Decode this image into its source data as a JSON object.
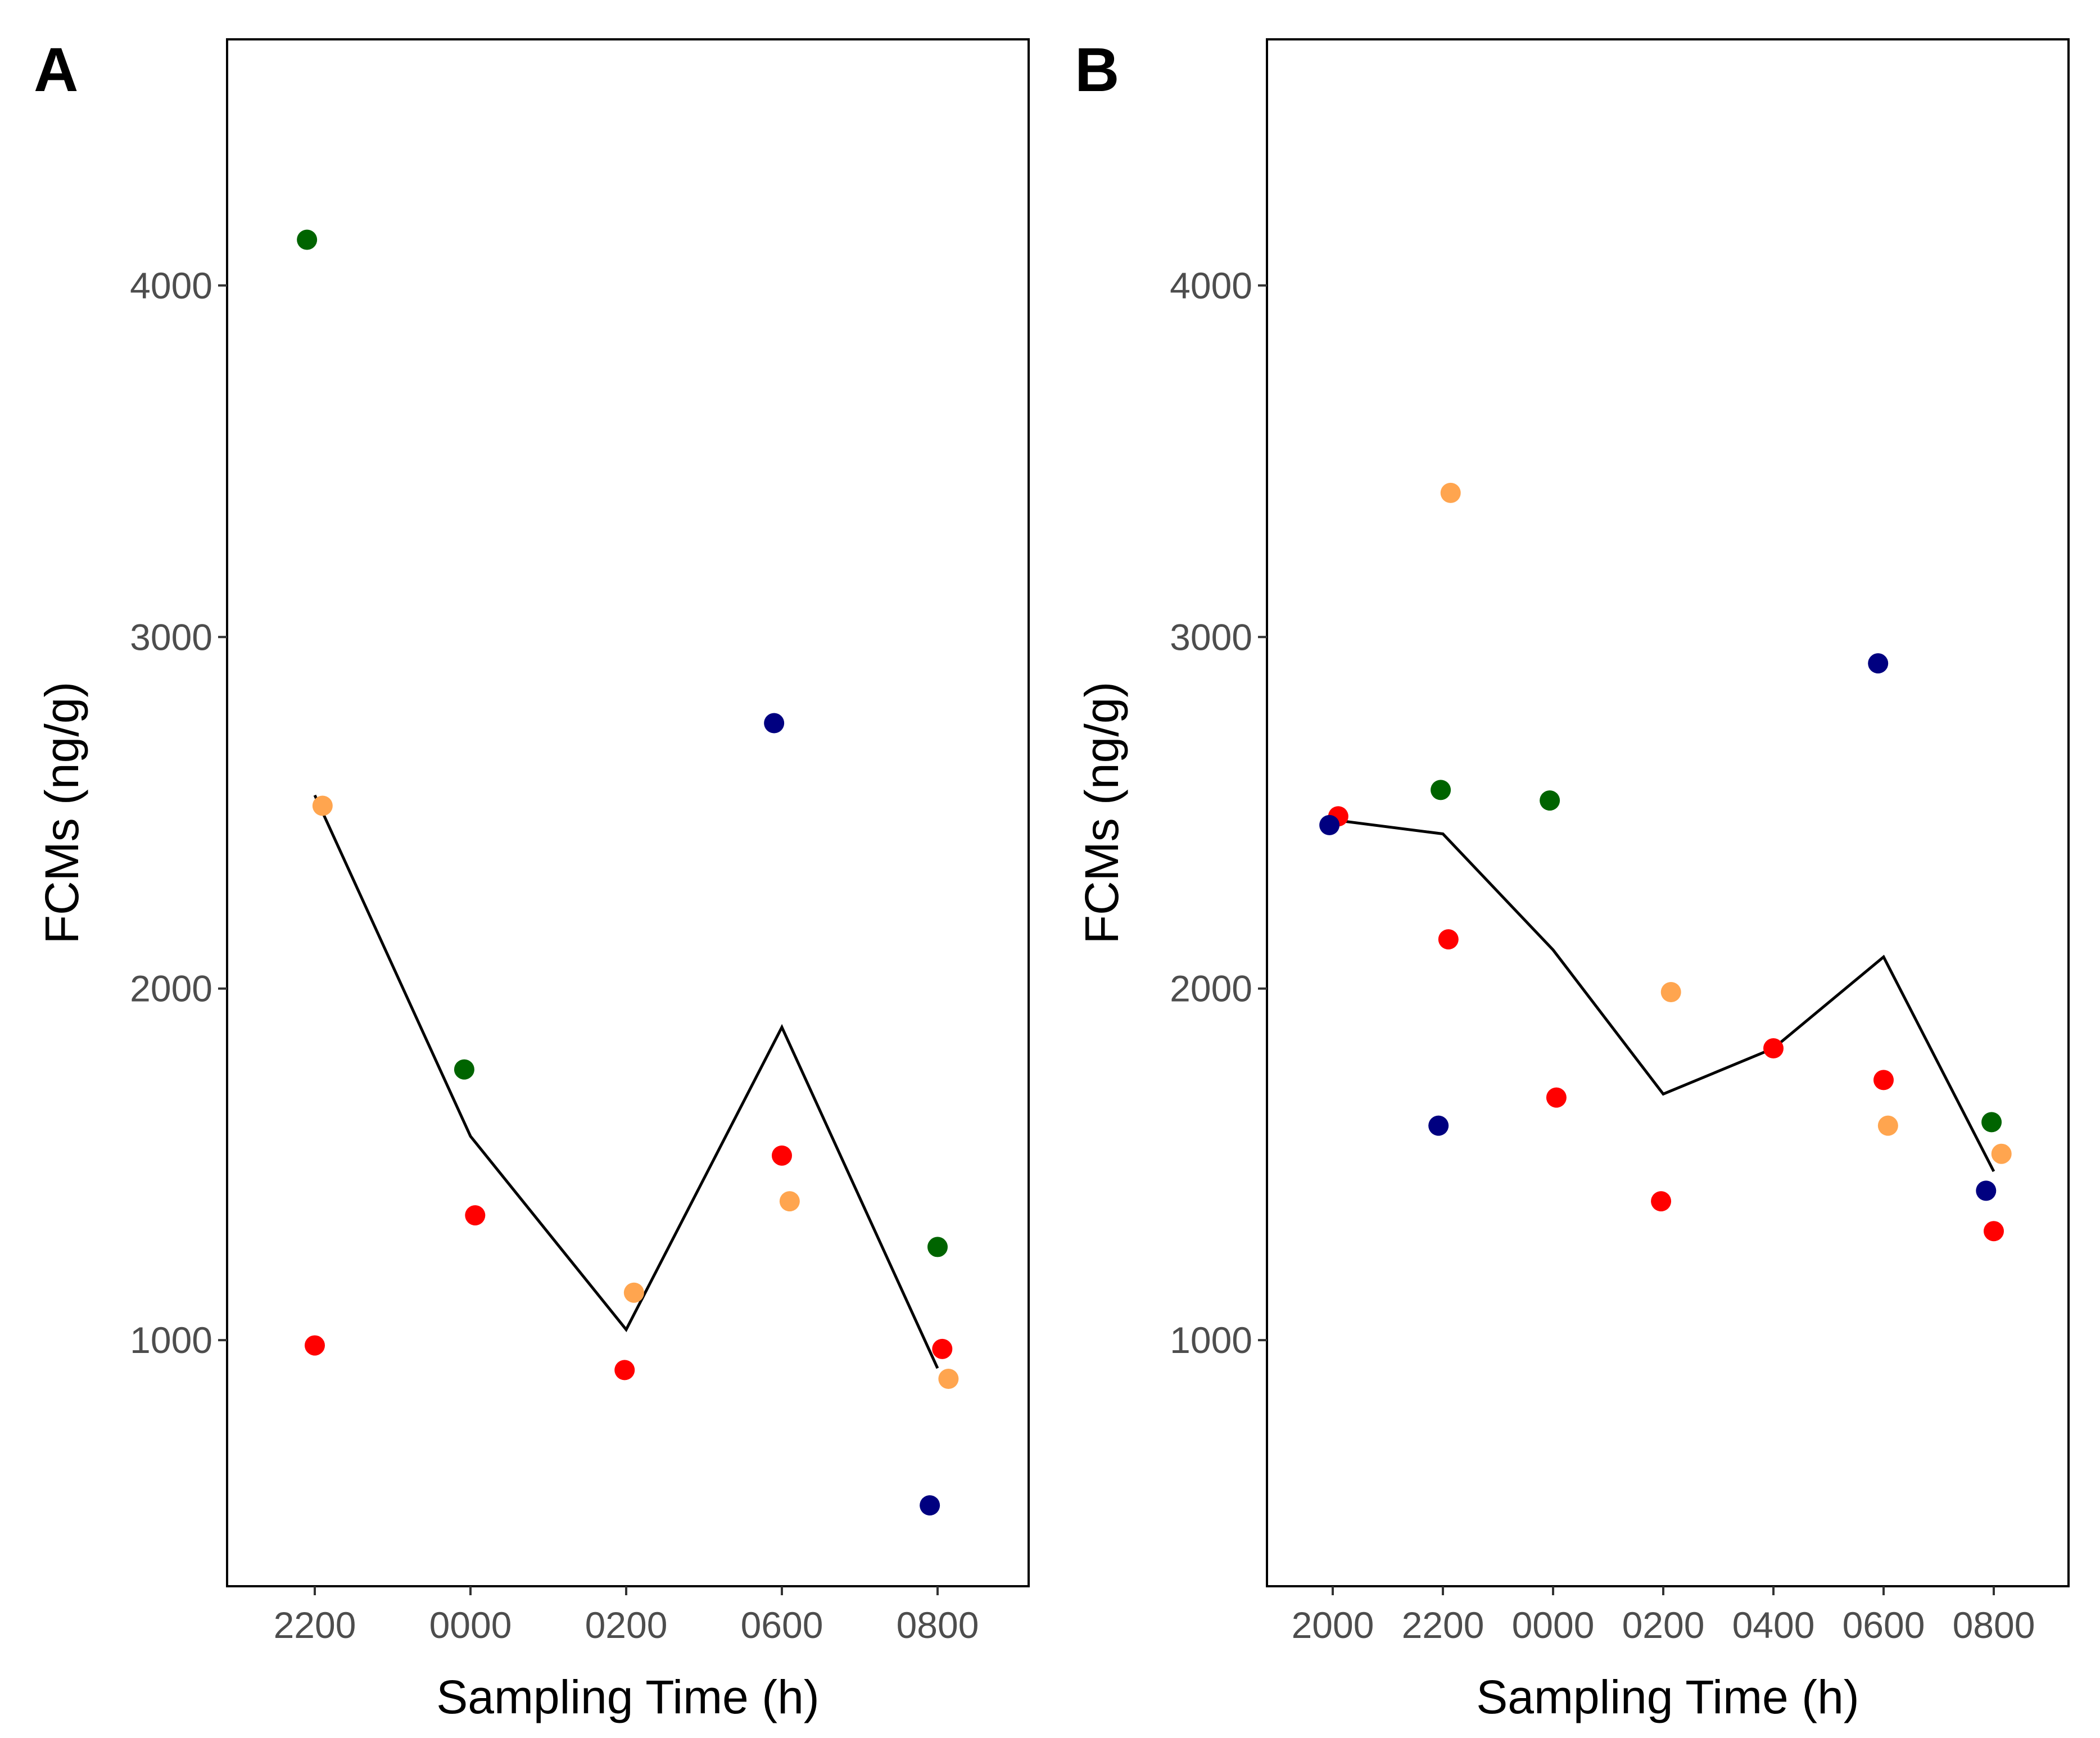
{
  "colors": {
    "green": "#006400",
    "orange": "#FFA54F",
    "red": "#FF0000",
    "navy": "#000080"
  },
  "chart_data": [
    {
      "type": "scatter",
      "panel": "A",
      "xlabel": "Sampling Time (h)",
      "ylabel": "FCMs (ng/g)",
      "categories": [
        "2200",
        "0000",
        "0200",
        "0600",
        "0800"
      ],
      "ylim": [
        300,
        4700
      ],
      "yticks": [
        1000,
        2000,
        3000,
        4000
      ],
      "mean_line": [
        2550,
        1580,
        1030,
        1890,
        920
      ],
      "points": [
        {
          "x": 0,
          "jitter": -0.05,
          "y": 4130,
          "color": "green"
        },
        {
          "x": 0,
          "jitter": 0.05,
          "y": 2520,
          "color": "orange"
        },
        {
          "x": 0,
          "jitter": 0.0,
          "y": 985,
          "color": "red"
        },
        {
          "x": 1,
          "jitter": -0.04,
          "y": 1770,
          "color": "green"
        },
        {
          "x": 1,
          "jitter": 0.03,
          "y": 1355,
          "color": "red"
        },
        {
          "x": 2,
          "jitter": 0.05,
          "y": 1135,
          "color": "orange"
        },
        {
          "x": 2,
          "jitter": -0.01,
          "y": 915,
          "color": "red"
        },
        {
          "x": 3,
          "jitter": -0.05,
          "y": 2755,
          "color": "navy"
        },
        {
          "x": 3,
          "jitter": 0.0,
          "y": 1525,
          "color": "red"
        },
        {
          "x": 3,
          "jitter": 0.05,
          "y": 1395,
          "color": "orange"
        },
        {
          "x": 4,
          "jitter": 0.0,
          "y": 1265,
          "color": "green"
        },
        {
          "x": 4,
          "jitter": 0.03,
          "y": 975,
          "color": "red"
        },
        {
          "x": 4,
          "jitter": 0.07,
          "y": 890,
          "color": "orange"
        },
        {
          "x": 4,
          "jitter": -0.05,
          "y": 530,
          "color": "navy"
        }
      ]
    },
    {
      "type": "scatter",
      "panel": "B",
      "xlabel": "Sampling Time (h)",
      "ylabel": "FCMs (ng/g)",
      "categories": [
        "2000",
        "2200",
        "0000",
        "0200",
        "0400",
        "0600",
        "0800"
      ],
      "ylim": [
        300,
        4700
      ],
      "yticks": [
        1000,
        2000,
        3000,
        4000
      ],
      "mean_line": [
        2480,
        2440,
        2110,
        1700,
        1830,
        2090,
        1480
      ],
      "points": [
        {
          "x": 0,
          "jitter": 0.05,
          "y": 2490,
          "color": "red"
        },
        {
          "x": 0,
          "jitter": -0.03,
          "y": 2465,
          "color": "navy"
        },
        {
          "x": 1,
          "jitter": 0.07,
          "y": 3410,
          "color": "orange"
        },
        {
          "x": 1,
          "jitter": -0.02,
          "y": 2565,
          "color": "green"
        },
        {
          "x": 1,
          "jitter": 0.05,
          "y": 2140,
          "color": "red"
        },
        {
          "x": 1,
          "jitter": -0.04,
          "y": 1610,
          "color": "navy"
        },
        {
          "x": 2,
          "jitter": -0.03,
          "y": 2535,
          "color": "green"
        },
        {
          "x": 2,
          "jitter": 0.03,
          "y": 1690,
          "color": "red"
        },
        {
          "x": 3,
          "jitter": 0.07,
          "y": 1990,
          "color": "orange"
        },
        {
          "x": 3,
          "jitter": -0.02,
          "y": 1395,
          "color": "red"
        },
        {
          "x": 4,
          "jitter": 0.0,
          "y": 1830,
          "color": "red"
        },
        {
          "x": 5,
          "jitter": -0.05,
          "y": 2925,
          "color": "navy"
        },
        {
          "x": 5,
          "jitter": 0.0,
          "y": 1740,
          "color": "red"
        },
        {
          "x": 5,
          "jitter": 0.04,
          "y": 1610,
          "color": "orange"
        },
        {
          "x": 6,
          "jitter": -0.02,
          "y": 1620,
          "color": "green"
        },
        {
          "x": 6,
          "jitter": 0.07,
          "y": 1530,
          "color": "orange"
        },
        {
          "x": 6,
          "jitter": -0.07,
          "y": 1425,
          "color": "navy"
        },
        {
          "x": 6,
          "jitter": 0.0,
          "y": 1310,
          "color": "red"
        }
      ]
    }
  ]
}
